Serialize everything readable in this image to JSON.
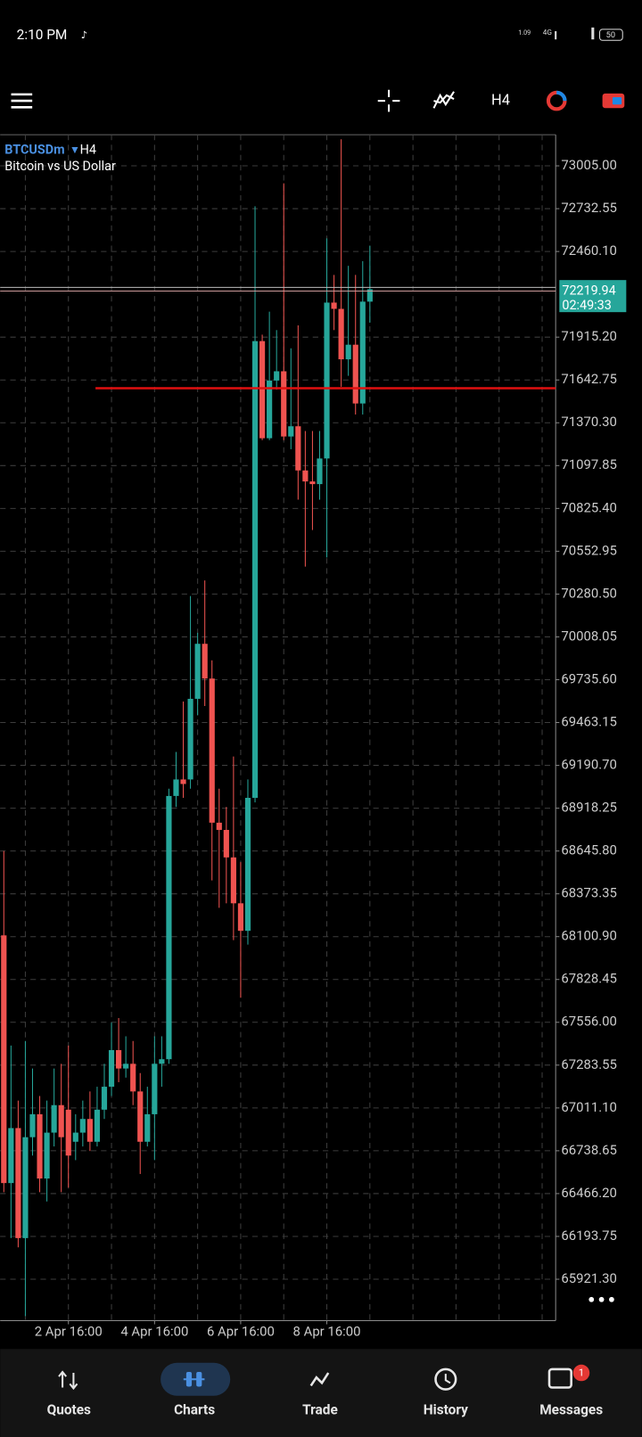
{
  "status_bar": {
    "time": "2:10 PM",
    "speed": "1.09",
    "network": "4G",
    "battery": "50"
  },
  "toolbar": {
    "timeframe": "H4"
  },
  "chart_data": {
    "type": "candlestick",
    "title": "BTCUSDm",
    "timeframe": "H4",
    "subtitle": "Bitcoin vs US Dollar",
    "up_color": "#26a69a",
    "down_color": "#ef5350",
    "categories": [
      null,
      null,
      null,
      null,
      null,
      null,
      null,
      null,
      null,
      "2 Apr 16:00",
      null,
      null,
      null,
      null,
      null,
      null,
      null,
      null,
      null,
      null,
      null,
      "4 Apr 16:00",
      null,
      null,
      null,
      null,
      null,
      null,
      null,
      null,
      null,
      null,
      null,
      "6 Apr 16:00",
      null,
      null,
      null,
      null,
      null,
      null,
      null,
      null,
      null,
      null,
      null,
      "8 Apr 16:00",
      null,
      null,
      null,
      null,
      null,
      null
    ],
    "open": [
      68109,
      66533,
      66883,
      66183,
      66825,
      66971,
      66562,
      66854,
      67029,
      67000,
      66796,
      66854,
      66941,
      66796,
      67000,
      67146,
      67379,
      67262,
      67292,
      67116,
      66796,
      66971,
      67292,
      67321,
      68996,
      69101,
      69101,
      69614,
      69964,
      69743,
      68826,
      68780,
      68605,
      68313,
      68138,
      68984,
      71890,
      71272,
      71639,
      71698,
      71283,
      71348,
      71067,
      70997,
      70980,
      71143,
      72135,
      72095,
      71774,
      71867,
      71493,
      72141
    ],
    "high": [
      68646,
      67408,
      67058,
      67437,
      67262,
      67087,
      67058,
      67262,
      67292,
      67408,
      66971,
      67058,
      67116,
      67146,
      67292,
      67554,
      67583,
      67467,
      67437,
      67233,
      67146,
      67467,
      67467,
      69042,
      69276,
      69597,
      70268,
      70034,
      70367,
      69859,
      69042,
      68926,
      69247,
      68575,
      69101,
      72748,
      71931,
      72077,
      71960,
      72894,
      71844,
      71990,
      71318,
      71318,
      71318,
      72544,
      72311,
      73174,
      72369,
      72311,
      72398,
      72497
    ],
    "low": [
      66475,
      66183,
      66124,
      65687,
      66708,
      66475,
      66416,
      66766,
      66475,
      66504,
      66679,
      66766,
      66737,
      66766,
      66941,
      67087,
      67175,
      67204,
      67029,
      66591,
      66766,
      66679,
      67146,
      67292,
      68926,
      68984,
      69042,
      69509,
      69568,
      68459,
      68284,
      68313,
      68079,
      67712,
      68050,
      68955,
      71260,
      71260,
      71581,
      71260,
      71202,
      70881,
      70455,
      70688,
      70881,
      70513,
      71960,
      71599,
      71669,
      71423,
      71423,
      72007
    ],
    "close": [
      66533,
      66883,
      66183,
      66825,
      66971,
      66562,
      66854,
      67029,
      66825,
      66708,
      66854,
      66941,
      66796,
      67000,
      67146,
      67379,
      67262,
      67292,
      67116,
      66796,
      66971,
      67292,
      67321,
      68996,
      69101,
      69072,
      69614,
      69964,
      69743,
      68826,
      68780,
      68605,
      68313,
      68138,
      68984,
      71890,
      71272,
      71639,
      71698,
      71283,
      71348,
      71067,
      70997,
      70980,
      71143,
      72135,
      72095,
      71774,
      71867,
      71493,
      72141,
      72220
    ],
    "ylim": [
      65658,
      73203
    ],
    "yticks": [
      {
        "value": 73005,
        "label": "73005.00"
      },
      {
        "value": 72732.55,
        "label": "72732.55"
      },
      {
        "value": 72460.1,
        "label": "72460.10"
      },
      {
        "value": 71915.2,
        "label": "71915.20"
      },
      {
        "value": 71642.75,
        "label": "71642.75"
      },
      {
        "value": 71370.3,
        "label": "71370.30"
      },
      {
        "value": 71097.85,
        "label": "71097.85"
      },
      {
        "value": 70825.4,
        "label": "70825.40"
      },
      {
        "value": 70552.95,
        "label": "70552.95"
      },
      {
        "value": 70280.5,
        "label": "70280.50"
      },
      {
        "value": 70008.05,
        "label": "70008.05"
      },
      {
        "value": 69735.6,
        "label": "69735.60"
      },
      {
        "value": 69463.15,
        "label": "69463.15"
      },
      {
        "value": 69190.7,
        "label": "69190.70"
      },
      {
        "value": 68918.25,
        "label": "68918.25"
      },
      {
        "value": 68645.8,
        "label": "68645.80"
      },
      {
        "value": 68373.35,
        "label": "68373.35"
      },
      {
        "value": 68100.9,
        "label": "68100.90"
      },
      {
        "value": 67828.45,
        "label": "67828.45"
      },
      {
        "value": 67556,
        "label": "67556.00"
      },
      {
        "value": 67283.55,
        "label": "67283.55"
      },
      {
        "value": 67011.1,
        "label": "67011.10"
      },
      {
        "value": 66738.65,
        "label": "66738.65"
      },
      {
        "value": 66466.2,
        "label": "66466.20"
      },
      {
        "value": 66193.75,
        "label": "66193.75"
      },
      {
        "value": 65921.3,
        "label": "65921.30"
      }
    ],
    "grid": true,
    "level_line": 71590,
    "level_color": "#e01010",
    "current_price": 72219.94,
    "countdown": "02:49:33",
    "current_color": "#26a69a"
  },
  "bottom_nav": {
    "items": [
      "Quotes",
      "Charts",
      "Trade",
      "History",
      "Messages"
    ],
    "active": 1,
    "badge": "1"
  }
}
